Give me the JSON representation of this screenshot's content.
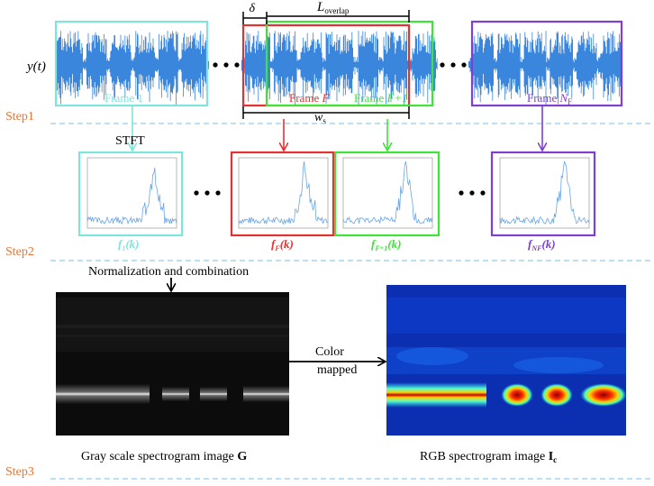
{
  "signal": {
    "label": "y(t)",
    "delta": "δ",
    "l_overlap_main": "L",
    "l_overlap_sub": "overlap",
    "ws_main": "w",
    "ws_sub": "s",
    "frames": {
      "f1": "Frame 1",
      "fF_prefix": "Frame ",
      "fF_var": "F",
      "fF1_prefix": "Frame ",
      "fF1_var": "F+1",
      "fN_prefix": "Frame ",
      "fN_var": "N",
      "fN_sub": "F"
    }
  },
  "steps": {
    "step1": "Step1",
    "step2": "Step2",
    "step3": "Step3"
  },
  "stft_label": "STFT",
  "spectra": {
    "f1": {
      "main": "f",
      "sub": "1",
      "arg": "(k)"
    },
    "fF": {
      "main": "f",
      "sub": "F",
      "arg": "(k)"
    },
    "fF1": {
      "main": "f",
      "sub": "F+1",
      "arg": "(k)"
    },
    "fN": {
      "main": "f",
      "sub": "NF",
      "arg": "(k)"
    }
  },
  "norm_label": "Normalization and combination",
  "color_map_line1": "Color",
  "color_map_line2": "mapped",
  "gray_caption_prefix": "Gray scale spectrogram image ",
  "gray_caption_bold": "G",
  "rgb_caption_prefix": "RGB spectrogram image ",
  "rgb_caption_bold": "I",
  "rgb_caption_sub": "c",
  "colors": {
    "signal": "#3b86dd",
    "frame1": "#7fe4d9",
    "frameF": "#e53131",
    "frameF1": "#3fe33a",
    "frameN": "#7f3fcf",
    "step": "#f0722c",
    "divider": "#a8d4ee"
  }
}
